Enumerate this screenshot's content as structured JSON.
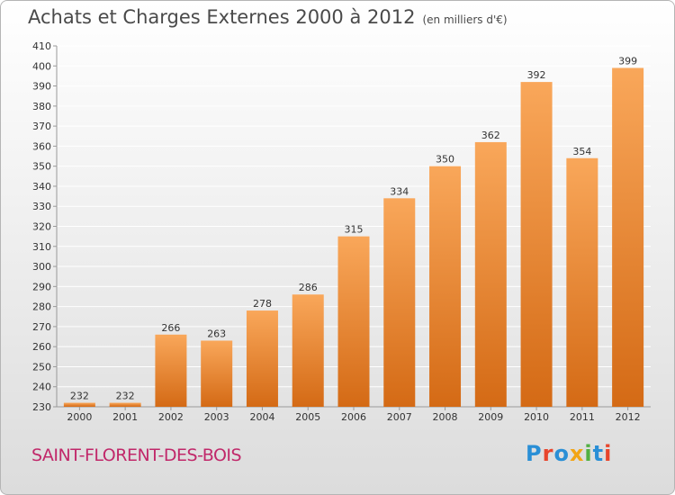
{
  "header": {
    "title": "Achats et Charges Externes 2000 à 2012",
    "unit": "(en milliers d'€)"
  },
  "footer": {
    "commune": "SAINT-FLORENT-DES-BOIS",
    "brand": "Proxiti"
  },
  "colors": {
    "bar_light": "#f9a75a",
    "bar_dark": "#d46a15",
    "commune_text": "#c1286a",
    "grid": "#ffffff",
    "axis": "#999999"
  },
  "chart_data": {
    "type": "bar",
    "title": "Achats et Charges Externes 2000 à 2012",
    "subtitle": "(en milliers d'€)",
    "xlabel": "",
    "ylabel": "",
    "categories": [
      "2000",
      "2001",
      "2002",
      "2003",
      "2004",
      "2005",
      "2006",
      "2007",
      "2008",
      "2009",
      "2010",
      "2011",
      "2012"
    ],
    "values": [
      232,
      232,
      266,
      263,
      278,
      286,
      315,
      334,
      350,
      362,
      392,
      354,
      399
    ],
    "ylim": [
      230,
      410
    ],
    "yticks": [
      230,
      240,
      250,
      260,
      270,
      280,
      290,
      300,
      310,
      320,
      330,
      340,
      350,
      360,
      370,
      380,
      390,
      400,
      410
    ],
    "grid": true,
    "legend": "none"
  }
}
